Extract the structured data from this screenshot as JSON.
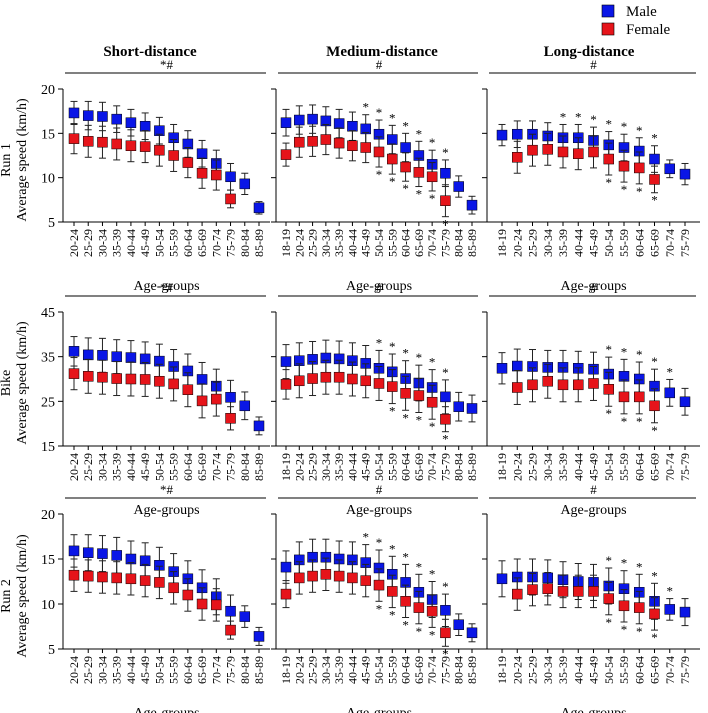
{
  "legend": [
    {
      "label": "Male",
      "color": "#0a16e6"
    },
    {
      "label": "Female",
      "color": "#e6141a"
    }
  ],
  "column_titles": [
    "Short-distance",
    "Medium-distance",
    "Long-distance"
  ],
  "row_labels": [
    {
      "name": "Run 1",
      "ylabel": "Average speed (km/h)"
    },
    {
      "name": "Bike",
      "ylabel": "Average speed (km/h)"
    },
    {
      "name": "Run 2",
      "ylabel": "Average speed (km/h)"
    }
  ],
  "xlabel": "Age-groups",
  "chart_data": [
    {
      "type": "scatter",
      "row": 0,
      "col": 0,
      "title": "Short-distance",
      "ylim": [
        5,
        20
      ],
      "yticks": [
        5,
        10,
        15,
        20
      ],
      "significance": "*#",
      "categories": [
        "20-24",
        "25-29",
        "30-34",
        "35-39",
        "40-44",
        "45-49",
        "50-54",
        "55-59",
        "60-64",
        "65-69",
        "70-74",
        "75-79",
        "80-84",
        "85-89"
      ],
      "series": [
        {
          "name": "Male",
          "values": [
            17.3,
            17.0,
            16.9,
            16.6,
            16.2,
            15.8,
            15.3,
            14.5,
            13.8,
            12.7,
            11.6,
            10.1,
            9.3,
            6.6
          ],
          "errors": [
            1.3,
            1.6,
            1.6,
            1.5,
            1.5,
            1.5,
            1.5,
            1.5,
            1.5,
            1.5,
            1.5,
            1.5,
            1.2,
            0.7
          ]
        },
        {
          "name": "Female",
          "values": [
            14.4,
            14.1,
            14.0,
            13.8,
            13.6,
            13.5,
            13.1,
            12.5,
            11.7,
            10.5,
            10.3,
            7.6,
            null,
            null
          ],
          "errors": [
            1.7,
            1.8,
            1.8,
            1.8,
            1.8,
            1.8,
            1.8,
            1.8,
            1.7,
            1.7,
            1.7,
            1.0,
            null,
            null
          ]
        }
      ],
      "stars": {
        "Male": [],
        "Female": []
      }
    },
    {
      "type": "scatter",
      "row": 0,
      "col": 1,
      "title": "Medium-distance",
      "ylim": [
        5,
        20
      ],
      "yticks": [
        5,
        10,
        15,
        20
      ],
      "significance": "#",
      "categories": [
        "18-19",
        "20-24",
        "25-29",
        "30-34",
        "35-39",
        "40-44",
        "45-49",
        "50-54",
        "55-59",
        "60-64",
        "65-69",
        "70-74",
        "75-79",
        "80-84",
        "85-89"
      ],
      "series": [
        {
          "name": "Male",
          "values": [
            16.2,
            16.5,
            16.6,
            16.4,
            16.1,
            15.8,
            15.5,
            14.9,
            14.3,
            13.4,
            12.5,
            11.5,
            10.5,
            9.0,
            6.9
          ],
          "errors": [
            1.5,
            1.6,
            1.6,
            1.6,
            1.6,
            1.6,
            1.6,
            1.6,
            1.6,
            1.6,
            1.6,
            1.6,
            1.5,
            1.2,
            1.0
          ]
        },
        {
          "name": "Female",
          "values": [
            12.6,
            14.0,
            14.1,
            14.3,
            13.9,
            13.6,
            13.4,
            12.9,
            12.1,
            11.2,
            10.6,
            10.1,
            7.4,
            null,
            null
          ],
          "errors": [
            1.3,
            1.7,
            1.7,
            1.7,
            1.7,
            1.7,
            1.7,
            1.7,
            1.7,
            1.6,
            1.6,
            1.6,
            1.8,
            null,
            null
          ]
        }
      ],
      "stars": {
        "Male": [
          6,
          7,
          8,
          9,
          10,
          11,
          12
        ],
        "Female": [
          7,
          8,
          9,
          10,
          11,
          12
        ]
      }
    },
    {
      "type": "scatter",
      "row": 0,
      "col": 2,
      "title": "Long-distance",
      "ylim": [
        5,
        20
      ],
      "yticks": [
        5,
        10,
        15,
        20
      ],
      "significance": "#",
      "categories": [
        "18-19",
        "20-24",
        "25-29",
        "30-34",
        "35-39",
        "40-44",
        "45-49",
        "50-54",
        "55-59",
        "60-64",
        "65-69",
        "70-74",
        "75-79"
      ],
      "series": [
        {
          "name": "Male",
          "values": [
            14.8,
            14.9,
            14.9,
            14.7,
            14.5,
            14.5,
            14.2,
            13.7,
            13.4,
            13.0,
            12.1,
            11.0,
            10.4
          ],
          "errors": [
            1.2,
            1.5,
            1.5,
            1.5,
            1.5,
            1.5,
            1.5,
            1.5,
            1.5,
            1.5,
            1.5,
            1.0,
            1.2
          ]
        },
        {
          "name": "Female",
          "values": [
            null,
            12.3,
            13.1,
            13.2,
            12.9,
            12.7,
            12.9,
            12.1,
            11.3,
            11.1,
            9.8,
            null,
            null
          ],
          "errors": [
            null,
            1.8,
            1.8,
            1.8,
            1.8,
            1.8,
            1.8,
            1.8,
            1.8,
            1.8,
            1.5,
            null,
            null
          ]
        }
      ],
      "stars": {
        "Male": [
          4,
          5,
          6,
          7,
          8,
          9,
          10
        ],
        "Female": [
          7,
          8,
          9,
          10
        ]
      }
    },
    {
      "type": "scatter",
      "row": 1,
      "col": 0,
      "title": "",
      "ylim": [
        15,
        45
      ],
      "yticks": [
        15,
        25,
        35,
        45
      ],
      "significance": "*#",
      "categories": [
        "20-24",
        "25-29",
        "30-34",
        "35-39",
        "40-44",
        "45-49",
        "50-54",
        "55-59",
        "60-64",
        "65-69",
        "70-74",
        "75-79",
        "80-84",
        "85-89"
      ],
      "series": [
        {
          "name": "Male",
          "values": [
            36.2,
            35.4,
            35.3,
            35.0,
            34.8,
            34.5,
            34.0,
            32.8,
            31.8,
            29.9,
            28.4,
            25.9,
            24.0,
            19.5
          ],
          "errors": [
            3.3,
            3.8,
            3.8,
            3.8,
            3.8,
            3.8,
            3.8,
            3.8,
            3.8,
            3.8,
            3.8,
            3.8,
            3.1,
            2.0
          ]
        },
        {
          "name": "Female",
          "values": [
            31.2,
            30.6,
            30.4,
            30.1,
            30.0,
            29.9,
            29.5,
            28.9,
            27.6,
            25.1,
            25.5,
            21.2,
            null,
            null
          ],
          "errors": [
            3.6,
            3.8,
            3.8,
            3.8,
            3.8,
            3.8,
            3.8,
            3.8,
            3.8,
            3.8,
            3.8,
            2.6,
            null,
            null
          ]
        }
      ],
      "stars": {
        "Male": [],
        "Female": []
      }
    },
    {
      "type": "scatter",
      "row": 1,
      "col": 1,
      "title": "",
      "ylim": [
        15,
        45
      ],
      "yticks": [
        15,
        25,
        35,
        45
      ],
      "significance": "#",
      "categories": [
        "18-19",
        "20-24",
        "25-29",
        "30-34",
        "35-39",
        "40-44",
        "45-49",
        "50-54",
        "55-59",
        "60-64",
        "65-69",
        "70-74",
        "75-79",
        "80-84",
        "85-89"
      ],
      "series": [
        {
          "name": "Male",
          "values": [
            33.9,
            34.1,
            34.4,
            34.7,
            34.5,
            34.1,
            33.5,
            32.4,
            31.6,
            30.1,
            29.1,
            28.1,
            26.0,
            23.8,
            23.4
          ],
          "errors": [
            3.8,
            4.0,
            4.0,
            4.0,
            4.0,
            4.0,
            4.0,
            4.0,
            4.0,
            4.0,
            4.0,
            4.0,
            3.8,
            3.2,
            3.0
          ]
        },
        {
          "name": "Female",
          "values": [
            28.8,
            29.6,
            30.1,
            30.4,
            30.4,
            30.0,
            29.6,
            29.0,
            28.3,
            26.8,
            26.3,
            24.8,
            21.0,
            null,
            null
          ],
          "errors": [
            3.3,
            3.8,
            3.8,
            3.8,
            3.8,
            3.8,
            3.8,
            3.8,
            3.8,
            3.8,
            3.8,
            3.8,
            2.8,
            null,
            null
          ]
        }
      ],
      "stars": {
        "Male": [
          7,
          8,
          9,
          10,
          11,
          12
        ],
        "Female": [
          8,
          9,
          10,
          11,
          12
        ]
      }
    },
    {
      "type": "scatter",
      "row": 1,
      "col": 2,
      "title": "",
      "ylim": [
        15,
        45
      ],
      "yticks": [
        15,
        25,
        35,
        45
      ],
      "significance": "#",
      "categories": [
        "18-19",
        "20-24",
        "25-29",
        "30-34",
        "35-39",
        "40-44",
        "45-49",
        "50-54",
        "55-59",
        "60-64",
        "65-69",
        "70-74",
        "75-79"
      ],
      "series": [
        {
          "name": "Male",
          "values": [
            32.4,
            32.9,
            32.8,
            32.6,
            32.6,
            32.4,
            32.2,
            31.1,
            30.6,
            30.0,
            28.4,
            26.9,
            24.9
          ],
          "errors": [
            3.5,
            3.8,
            3.8,
            3.8,
            3.8,
            3.8,
            3.8,
            3.8,
            3.8,
            3.8,
            3.8,
            3.0,
            3.0
          ]
        },
        {
          "name": "Female",
          "values": [
            null,
            28.1,
            28.7,
            29.5,
            28.7,
            28.7,
            29.0,
            27.7,
            26.0,
            26.0,
            24.0,
            null,
            null
          ],
          "errors": [
            null,
            3.8,
            3.8,
            3.8,
            3.8,
            3.8,
            3.8,
            3.8,
            3.8,
            3.8,
            3.8,
            null,
            null
          ]
        }
      ],
      "stars": {
        "Male": [
          7,
          8,
          9,
          10,
          11
        ],
        "Female": [
          7,
          8,
          9,
          10
        ]
      }
    },
    {
      "type": "scatter",
      "row": 2,
      "col": 0,
      "title": "",
      "ylim": [
        5,
        20
      ],
      "yticks": [
        5,
        10,
        15,
        20
      ],
      "significance": "*#",
      "categories": [
        "20-24",
        "25-29",
        "30-34",
        "35-39",
        "40-44",
        "45-49",
        "50-54",
        "55-59",
        "60-64",
        "65-69",
        "70-74",
        "75-79",
        "80-84",
        "85-89"
      ],
      "series": [
        {
          "name": "Male",
          "values": [
            15.9,
            15.7,
            15.6,
            15.4,
            15.0,
            14.8,
            14.3,
            13.6,
            12.8,
            11.8,
            10.8,
            9.2,
            8.6,
            6.4
          ],
          "errors": [
            1.8,
            2.0,
            2.0,
            2.0,
            2.0,
            2.0,
            2.0,
            2.0,
            2.0,
            2.0,
            2.0,
            1.8,
            1.2,
            1.0
          ]
        },
        {
          "name": "Female",
          "values": [
            13.2,
            13.1,
            13.0,
            12.9,
            12.8,
            12.6,
            12.4,
            11.8,
            11.0,
            10.0,
            9.9,
            7.1,
            null,
            null
          ],
          "errors": [
            1.8,
            1.8,
            1.8,
            1.8,
            1.8,
            1.8,
            1.8,
            1.8,
            1.8,
            1.8,
            1.8,
            1.0,
            null,
            null
          ]
        }
      ],
      "stars": {
        "Male": [],
        "Female": []
      }
    },
    {
      "type": "scatter",
      "row": 2,
      "col": 1,
      "title": "",
      "ylim": [
        5,
        20
      ],
      "yticks": [
        5,
        10,
        15,
        20
      ],
      "significance": "#",
      "categories": [
        "18-19",
        "20-24",
        "25-29",
        "30-34",
        "35-39",
        "40-44",
        "45-49",
        "50-54",
        "55-59",
        "60-64",
        "65-69",
        "70-74",
        "75-79",
        "80-84",
        "85-89"
      ],
      "series": [
        {
          "name": "Male",
          "values": [
            14.1,
            14.9,
            15.2,
            15.2,
            15.0,
            14.9,
            14.6,
            14.0,
            13.3,
            12.4,
            11.3,
            10.5,
            9.3,
            7.7,
            6.8
          ],
          "errors": [
            1.8,
            2.0,
            2.0,
            2.0,
            2.0,
            2.0,
            2.0,
            2.0,
            2.0,
            2.0,
            2.0,
            2.0,
            1.8,
            1.2,
            1.0
          ]
        },
        {
          "name": "Female",
          "values": [
            11.1,
            12.9,
            13.1,
            13.3,
            13.1,
            12.9,
            12.6,
            12.1,
            11.4,
            10.3,
            9.6,
            9.2,
            6.8,
            null,
            null
          ],
          "errors": [
            1.5,
            1.8,
            1.8,
            1.8,
            1.8,
            1.8,
            1.8,
            1.8,
            1.8,
            1.8,
            1.8,
            1.8,
            1.5,
            null,
            null
          ]
        }
      ],
      "stars": {
        "Male": [
          6,
          7,
          8,
          9,
          10,
          11,
          12
        ],
        "Female": [
          7,
          8,
          9,
          10,
          11,
          12
        ]
      }
    },
    {
      "type": "scatter",
      "row": 2,
      "col": 2,
      "title": "",
      "ylim": [
        5,
        20
      ],
      "yticks": [
        5,
        10,
        15,
        20
      ],
      "significance": "#",
      "categories": [
        "18-19",
        "20-24",
        "25-29",
        "30-34",
        "35-39",
        "40-44",
        "45-49",
        "50-54",
        "55-59",
        "60-64",
        "65-69",
        "70-74",
        "75-79"
      ],
      "series": [
        {
          "name": "Male",
          "values": [
            12.8,
            13.0,
            13.0,
            12.9,
            12.7,
            12.5,
            12.4,
            12.0,
            11.7,
            11.3,
            10.3,
            9.4,
            9.1
          ],
          "errors": [
            2.0,
            2.0,
            2.0,
            2.0,
            2.0,
            2.0,
            2.0,
            2.0,
            2.0,
            2.0,
            2.0,
            1.2,
            1.5
          ]
        },
        {
          "name": "Female",
          "values": [
            null,
            11.1,
            11.6,
            11.7,
            11.4,
            11.4,
            11.4,
            10.6,
            9.8,
            9.6,
            8.9,
            null,
            null
          ],
          "errors": [
            null,
            1.8,
            1.8,
            1.8,
            1.8,
            1.8,
            1.8,
            1.8,
            1.8,
            1.8,
            1.8,
            null,
            null
          ]
        }
      ],
      "stars": {
        "Male": [
          7,
          8,
          9,
          10,
          11
        ],
        "Female": [
          7,
          8,
          9,
          10
        ]
      }
    }
  ]
}
